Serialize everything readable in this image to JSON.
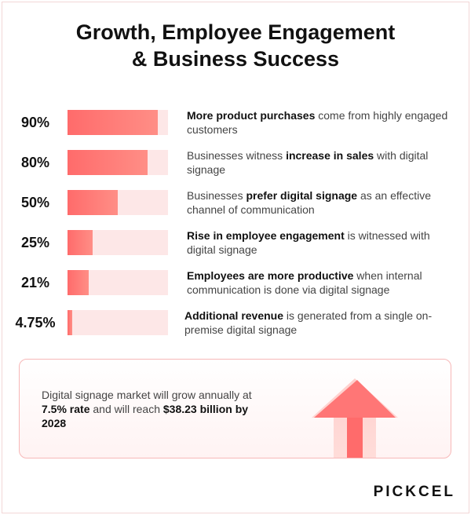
{
  "title_line1": "Growth, Employee Engagement",
  "title_line2": "& Business Success",
  "chart_data": {
    "type": "bar",
    "orientation": "horizontal",
    "categories": [
      "90%",
      "80%",
      "50%",
      "25%",
      "21%",
      "4.75%"
    ],
    "values": [
      90,
      80,
      50,
      25,
      21,
      4.75
    ],
    "xlim": [
      0,
      100
    ],
    "title": "Growth, Employee Engagement & Business Success",
    "colors": {
      "fill": "#ff6b6b",
      "track": "#fde7e7"
    }
  },
  "rows": [
    {
      "pct": "90%",
      "value": 90,
      "bold": "More product purchases",
      "text_a": "",
      "text_b": " come from highly engaged customers"
    },
    {
      "pct": "80%",
      "value": 80,
      "bold": "increase in sales",
      "text_a": "Businesses witness ",
      "text_b": " with digital signage"
    },
    {
      "pct": "50%",
      "value": 50,
      "bold": "prefer digital signage",
      "text_a": "Businesses ",
      "text_b": " as an effective channel of communication"
    },
    {
      "pct": "25%",
      "value": 25,
      "bold": "Rise in employee engagement",
      "text_a": "",
      "text_b": " is witnessed with digital signage"
    },
    {
      "pct": "21%",
      "value": 21,
      "bold": "Employees are more productive",
      "text_a": "",
      "text_b": " when internal communication is done via digital signage"
    },
    {
      "pct": "4.75%",
      "value": 4.75,
      "bold": "Additional revenue",
      "text_a": "",
      "text_b": " is generated from a single on-premise digital signage"
    }
  ],
  "callout": {
    "text_a": "Digital signage market will grow annually at ",
    "bold_a": "7.5% rate",
    "text_b": " and will reach ",
    "bold_b": "$38.23 billion by 2028"
  },
  "logo": "PICKCEL",
  "colors": {
    "accent": "#ff6b6b",
    "track": "#fde7e7",
    "border": "#f7b8b8"
  }
}
